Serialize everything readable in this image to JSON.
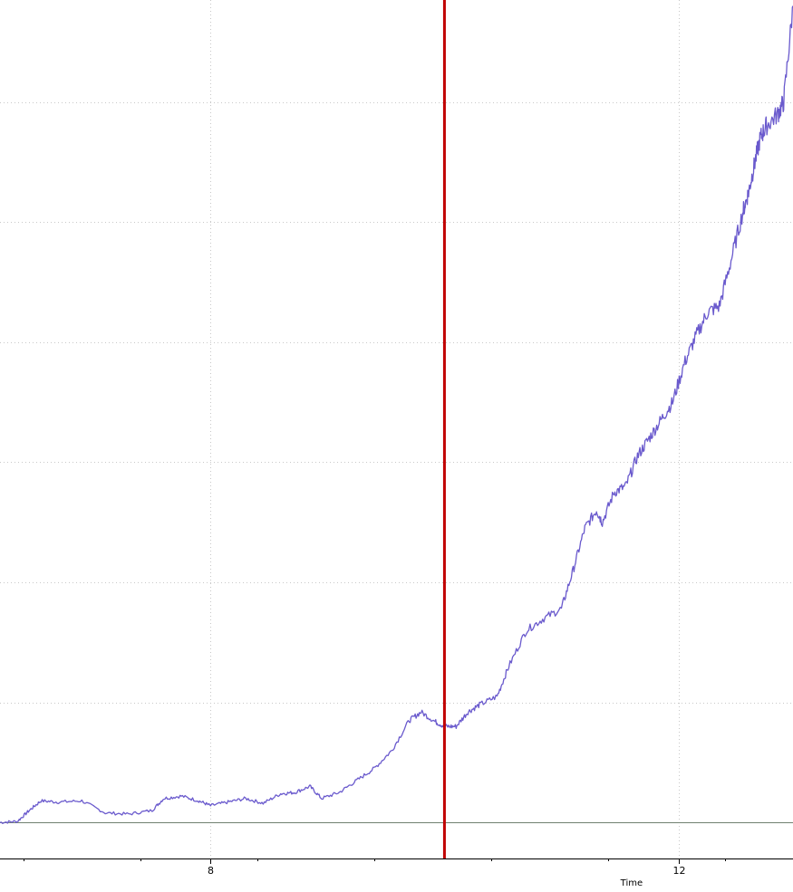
{
  "chart_data": {
    "type": "line",
    "title": "",
    "xlabel": "Time",
    "ylabel": "",
    "xlim": [
      6.2,
      12.98
    ],
    "ylim": [
      -0.3,
      6.85
    ],
    "grid": true,
    "x_ticks_major": [
      8,
      12
    ],
    "x_tick_labels": [
      "8",
      "12"
    ],
    "x_ticks_minor": [
      6.4,
      7.4,
      8.4,
      9.4,
      10.4,
      11.4,
      12.4
    ],
    "y_gridlines": [
      1,
      2,
      3,
      4,
      5,
      6
    ],
    "marker": {
      "x": 10.0,
      "color": "#c00000"
    },
    "baseline": {
      "y": 0,
      "color": "#708070"
    },
    "series": [
      {
        "color": "#6a5acd",
        "x": [
          6.2,
          6.35,
          6.45,
          6.55,
          6.7,
          6.9,
          7.1,
          7.3,
          7.5,
          7.6,
          7.75,
          7.9,
          8.0,
          8.15,
          8.3,
          8.45,
          8.6,
          8.72,
          8.85,
          8.95,
          9.1,
          9.25,
          9.4,
          9.55,
          9.7,
          9.8,
          9.92,
          10.0,
          10.1,
          10.2,
          10.3,
          10.45,
          10.55,
          10.7,
          10.85,
          11.0,
          11.1,
          11.2,
          11.3,
          11.35,
          11.45,
          11.55,
          11.65,
          11.75,
          11.85,
          11.95,
          12.05,
          12.15,
          12.25,
          12.35,
          12.45,
          12.55,
          12.6,
          12.65,
          12.7,
          12.75,
          12.85,
          12.9,
          12.98
        ],
        "y": [
          0.0,
          0.01,
          0.1,
          0.18,
          0.17,
          0.18,
          0.08,
          0.07,
          0.1,
          0.2,
          0.22,
          0.18,
          0.14,
          0.17,
          0.2,
          0.16,
          0.24,
          0.25,
          0.3,
          0.2,
          0.25,
          0.35,
          0.45,
          0.6,
          0.85,
          0.92,
          0.84,
          0.8,
          0.8,
          0.92,
          0.98,
          1.05,
          1.3,
          1.6,
          1.7,
          1.78,
          2.1,
          2.45,
          2.6,
          2.5,
          2.75,
          2.8,
          3.05,
          3.2,
          3.35,
          3.5,
          3.82,
          4.05,
          4.25,
          4.3,
          4.68,
          5.08,
          5.25,
          5.48,
          5.7,
          5.8,
          5.9,
          6.0,
          6.8
        ]
      }
    ]
  }
}
